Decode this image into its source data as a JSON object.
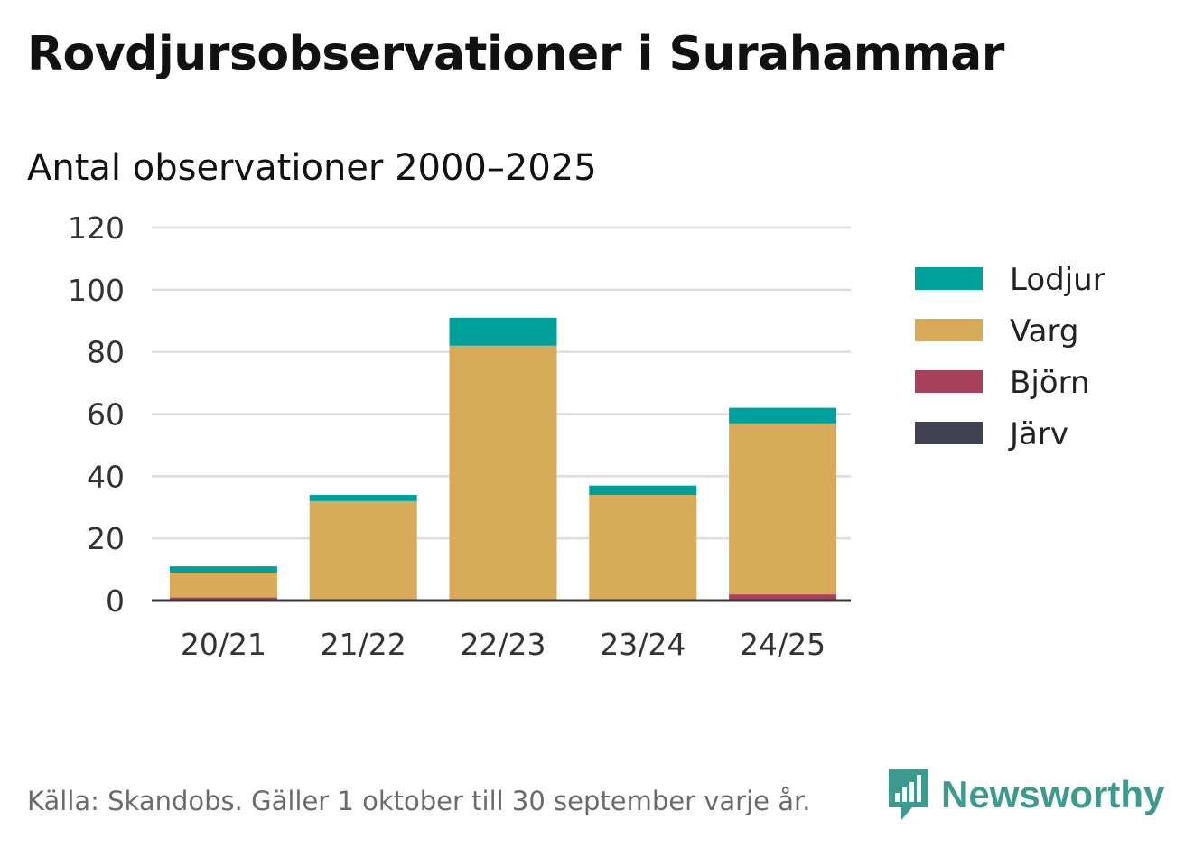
{
  "title": "Rovdjursobservationer i Surahammar",
  "subtitle": "Antal observationer 2000–2025",
  "source": "Källa: Skandobs. Gäller 1 oktober till 30 september varje år.",
  "brand": {
    "name": "Newsworthy",
    "color": "#3d9a8e"
  },
  "chart_data": {
    "type": "bar",
    "stacked": true,
    "categories": [
      "20/21",
      "21/22",
      "22/23",
      "23/24",
      "24/25"
    ],
    "series": [
      {
        "name": "Järv",
        "color": "#404050",
        "values": [
          0,
          0,
          0,
          0,
          0
        ]
      },
      {
        "name": "Björn",
        "color": "#a8415b",
        "values": [
          1,
          0,
          0,
          0,
          2
        ]
      },
      {
        "name": "Varg",
        "color": "#d8ab5a",
        "values": [
          8,
          32,
          82,
          34,
          55
        ]
      },
      {
        "name": "Lodjur",
        "color": "#00a19a",
        "values": [
          2,
          2,
          9,
          3,
          5
        ]
      }
    ],
    "legend_order": [
      "Lodjur",
      "Varg",
      "Björn",
      "Järv"
    ],
    "y_ticks": [
      "0",
      "20",
      "40",
      "60",
      "80",
      "100",
      "120"
    ],
    "ylim": [
      0,
      120
    ],
    "grid": true,
    "legend_position": "right"
  }
}
